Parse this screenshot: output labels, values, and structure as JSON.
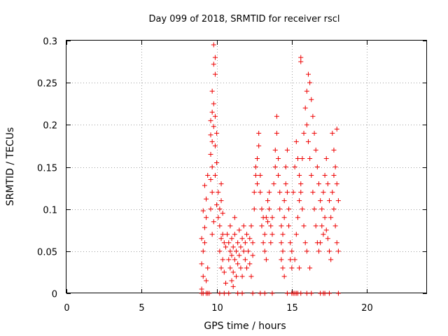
{
  "chart_data": {
    "type": "scatter",
    "title": "Day 099 of 2018, SRMTID for receiver rscl",
    "xlabel": "GPS time / hours",
    "ylabel": "SRMTID / TECUs",
    "xlim": [
      0,
      24
    ],
    "ylim": [
      0,
      0.3
    ],
    "xticks": [
      0,
      5,
      10,
      15,
      20
    ],
    "yticks": [
      0,
      0.05,
      0.1,
      0.15,
      0.2,
      0.25,
      0.3
    ],
    "xtick_labels": [
      "0",
      "5",
      "10",
      "15",
      "20"
    ],
    "ytick_labels": [
      "0",
      "0.05",
      "0.1",
      "0.15",
      "0.2",
      "0.25",
      "0.3"
    ],
    "grid": true,
    "marker": "+",
    "color": "#ee0000",
    "series": [
      {
        "name": "SRMTID",
        "points": [
          [
            9.0,
            0.0
          ],
          [
            9.1,
            0.0
          ],
          [
            9.3,
            0.0
          ],
          [
            9.4,
            0.0
          ],
          [
            9.5,
            0.0
          ],
          [
            10.2,
            0.0
          ],
          [
            10.5,
            0.0
          ],
          [
            10.8,
            0.0
          ],
          [
            11.4,
            0.0
          ],
          [
            11.7,
            0.0
          ],
          [
            12.4,
            0.0
          ],
          [
            12.9,
            0.0
          ],
          [
            13.2,
            0.0
          ],
          [
            13.7,
            0.0
          ],
          [
            14.7,
            0.0
          ],
          [
            15.0,
            0.0
          ],
          [
            15.1,
            0.0
          ],
          [
            15.2,
            0.0
          ],
          [
            15.3,
            0.0
          ],
          [
            15.4,
            0.0
          ],
          [
            15.6,
            0.0
          ],
          [
            16.0,
            0.0
          ],
          [
            16.3,
            0.0
          ],
          [
            16.9,
            0.0
          ],
          [
            17.1,
            0.0
          ],
          [
            17.2,
            0.0
          ],
          [
            17.5,
            0.0
          ],
          [
            18.1,
            0.0
          ],
          [
            9.0,
            0.005
          ],
          [
            9.1,
            0.02
          ],
          [
            9.0,
            0.035
          ],
          [
            9.1,
            0.05
          ],
          [
            9.0,
            0.065
          ],
          [
            9.2,
            0.078
          ],
          [
            9.1,
            0.098
          ],
          [
            9.3,
            0.112
          ],
          [
            9.2,
            0.128
          ],
          [
            9.4,
            0.14
          ],
          [
            9.3,
            0.09
          ],
          [
            9.2,
            0.06
          ],
          [
            9.4,
            0.03
          ],
          [
            9.3,
            0.015
          ],
          [
            9.6,
            0.135
          ],
          [
            9.7,
            0.15
          ],
          [
            9.6,
            0.165
          ],
          [
            9.7,
            0.18
          ],
          [
            9.8,
            0.198
          ],
          [
            9.7,
            0.215
          ],
          [
            9.8,
            0.225
          ],
          [
            9.9,
            0.21
          ],
          [
            9.7,
            0.24
          ],
          [
            9.9,
            0.26
          ],
          [
            9.8,
            0.272
          ],
          [
            9.9,
            0.28
          ],
          [
            9.8,
            0.295
          ],
          [
            9.6,
            0.205
          ],
          [
            9.7,
            0.12
          ],
          [
            9.6,
            0.1
          ],
          [
            9.8,
            0.085
          ],
          [
            9.7,
            0.07
          ],
          [
            9.9,
            0.175
          ],
          [
            10.0,
            0.155
          ],
          [
            10.0,
            0.19
          ],
          [
            10.1,
            0.12
          ],
          [
            10.0,
            0.105
          ],
          [
            10.1,
            0.09
          ],
          [
            9.6,
            0.188
          ],
          [
            9.9,
            0.14
          ],
          [
            10.2,
            0.08
          ],
          [
            10.3,
            0.065
          ],
          [
            10.2,
            0.05
          ],
          [
            10.4,
            0.04
          ],
          [
            10.3,
            0.03
          ],
          [
            10.5,
            0.06
          ],
          [
            10.4,
            0.07
          ],
          [
            10.6,
            0.055
          ],
          [
            10.5,
            0.025
          ],
          [
            10.6,
            0.012
          ],
          [
            10.3,
            0.11
          ],
          [
            10.4,
            0.095
          ],
          [
            10.3,
            0.13
          ],
          [
            10.2,
            0.1
          ],
          [
            10.7,
            0.07
          ],
          [
            10.8,
            0.06
          ],
          [
            10.9,
            0.05
          ],
          [
            10.8,
            0.04
          ],
          [
            10.9,
            0.03
          ],
          [
            11.0,
            0.065
          ],
          [
            11.0,
            0.045
          ],
          [
            11.1,
            0.055
          ],
          [
            11.1,
            0.025
          ],
          [
            11.2,
            0.07
          ],
          [
            11.2,
            0.04
          ],
          [
            11.3,
            0.05
          ],
          [
            11.3,
            0.02
          ],
          [
            11.0,
            0.015
          ],
          [
            11.1,
            0.008
          ],
          [
            10.9,
            0.08
          ],
          [
            11.2,
            0.09
          ],
          [
            11.4,
            0.06
          ],
          [
            11.4,
            0.035
          ],
          [
            11.5,
            0.045
          ],
          [
            11.5,
            0.075
          ],
          [
            11.6,
            0.055
          ],
          [
            11.6,
            0.03
          ],
          [
            11.7,
            0.065
          ],
          [
            11.7,
            0.02
          ],
          [
            11.8,
            0.05
          ],
          [
            11.8,
            0.08
          ],
          [
            11.9,
            0.06
          ],
          [
            11.9,
            0.04
          ],
          [
            12.0,
            0.07
          ],
          [
            12.0,
            0.03
          ],
          [
            12.1,
            0.05
          ],
          [
            12.2,
            0.035
          ],
          [
            12.2,
            0.065
          ],
          [
            12.3,
            0.02
          ],
          [
            12.3,
            0.08
          ],
          [
            12.4,
            0.045
          ],
          [
            12.4,
            0.06
          ],
          [
            12.5,
            0.1
          ],
          [
            12.5,
            0.12
          ],
          [
            12.6,
            0.14
          ],
          [
            12.6,
            0.15
          ],
          [
            12.7,
            0.13
          ],
          [
            12.7,
            0.16
          ],
          [
            12.8,
            0.175
          ],
          [
            12.8,
            0.19
          ],
          [
            12.9,
            0.14
          ],
          [
            12.9,
            0.12
          ],
          [
            13.0,
            0.1
          ],
          [
            13.0,
            0.08
          ],
          [
            13.1,
            0.09
          ],
          [
            13.1,
            0.06
          ],
          [
            13.2,
            0.05
          ],
          [
            13.2,
            0.07
          ],
          [
            13.3,
            0.04
          ],
          [
            13.3,
            0.09
          ],
          [
            13.4,
            0.11
          ],
          [
            13.4,
            0.085
          ],
          [
            13.5,
            0.1
          ],
          [
            13.5,
            0.12
          ],
          [
            13.6,
            0.08
          ],
          [
            13.6,
            0.06
          ],
          [
            13.7,
            0.07
          ],
          [
            13.7,
            0.09
          ],
          [
            13.8,
            0.13
          ],
          [
            13.9,
            0.15
          ],
          [
            13.9,
            0.17
          ],
          [
            14.0,
            0.21
          ],
          [
            14.0,
            0.19
          ],
          [
            14.1,
            0.16
          ],
          [
            14.1,
            0.14
          ],
          [
            14.2,
            0.12
          ],
          [
            14.2,
            0.1
          ],
          [
            14.3,
            0.08
          ],
          [
            14.3,
            0.06
          ],
          [
            14.4,
            0.05
          ],
          [
            14.4,
            0.07
          ],
          [
            14.5,
            0.09
          ],
          [
            14.5,
            0.11
          ],
          [
            14.6,
            0.13
          ],
          [
            14.6,
            0.15
          ],
          [
            14.7,
            0.17
          ],
          [
            14.7,
            0.12
          ],
          [
            14.8,
            0.1
          ],
          [
            14.8,
            0.08
          ],
          [
            14.9,
            0.06
          ],
          [
            14.9,
            0.04
          ],
          [
            15.0,
            0.03
          ],
          [
            15.0,
            0.05
          ],
          [
            14.3,
            0.04
          ],
          [
            14.4,
            0.03
          ],
          [
            14.5,
            0.02
          ],
          [
            15.1,
            0.12
          ],
          [
            15.2,
            0.15
          ],
          [
            15.3,
            0.18
          ],
          [
            15.4,
            0.16
          ],
          [
            15.5,
            0.14
          ],
          [
            15.6,
            0.12
          ],
          [
            15.7,
            0.1
          ],
          [
            15.8,
            0.08
          ],
          [
            15.9,
            0.06
          ],
          [
            16.0,
            0.05
          ],
          [
            15.3,
            0.07
          ],
          [
            15.4,
            0.09
          ],
          [
            15.5,
            0.11
          ],
          [
            15.6,
            0.13
          ],
          [
            15.7,
            0.16
          ],
          [
            15.8,
            0.19
          ],
          [
            15.9,
            0.22
          ],
          [
            16.0,
            0.24
          ],
          [
            16.1,
            0.26
          ],
          [
            16.2,
            0.25
          ],
          [
            16.3,
            0.23
          ],
          [
            16.4,
            0.21
          ],
          [
            16.5,
            0.19
          ],
          [
            16.6,
            0.17
          ],
          [
            15.6,
            0.28
          ],
          [
            15.6,
            0.275
          ],
          [
            16.0,
            0.2
          ],
          [
            16.1,
            0.18
          ],
          [
            16.2,
            0.16
          ],
          [
            16.3,
            0.14
          ],
          [
            16.4,
            0.12
          ],
          [
            16.5,
            0.1
          ],
          [
            16.6,
            0.08
          ],
          [
            16.7,
            0.06
          ],
          [
            16.8,
            0.05
          ],
          [
            15.2,
            0.04
          ],
          [
            15.5,
            0.03
          ],
          [
            16.2,
            0.03
          ],
          [
            16.7,
            0.15
          ],
          [
            16.8,
            0.13
          ],
          [
            16.9,
            0.11
          ],
          [
            17.0,
            0.1
          ],
          [
            17.1,
            0.12
          ],
          [
            17.2,
            0.14
          ],
          [
            17.3,
            0.16
          ],
          [
            17.4,
            0.13
          ],
          [
            17.5,
            0.11
          ],
          [
            17.6,
            0.09
          ],
          [
            17.7,
            0.12
          ],
          [
            17.8,
            0.1
          ],
          [
            17.9,
            0.08
          ],
          [
            18.0,
            0.06
          ],
          [
            18.1,
            0.05
          ],
          [
            17.3,
            0.075
          ],
          [
            17.4,
            0.065
          ],
          [
            17.5,
            0.05
          ],
          [
            17.6,
            0.04
          ],
          [
            17.7,
            0.19
          ],
          [
            17.8,
            0.17
          ],
          [
            17.9,
            0.15
          ],
          [
            18.0,
            0.13
          ],
          [
            18.1,
            0.11
          ],
          [
            17.0,
            0.08
          ],
          [
            17.1,
            0.07
          ],
          [
            16.9,
            0.06
          ],
          [
            17.2,
            0.09
          ],
          [
            18.0,
            0.195
          ],
          [
            17.8,
            0.14
          ]
        ]
      }
    ]
  }
}
